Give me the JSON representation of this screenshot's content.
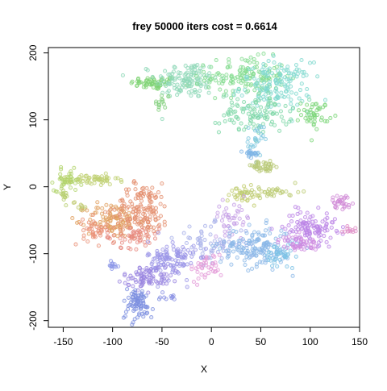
{
  "chart_data": {
    "type": "scatter",
    "title": "frey 50000 iters cost = 0.6614",
    "xlabel": "X",
    "ylabel": "Y",
    "xlim": [
      -165,
      150
    ],
    "ylim": [
      -210,
      208
    ],
    "x_ticks": [
      -150,
      -100,
      -50,
      0,
      50,
      100,
      150
    ],
    "y_ticks": [
      -200,
      -100,
      0,
      100,
      200
    ],
    "x_tick_labels": [
      "-150",
      "-100",
      "-50",
      "0",
      "50",
      "100",
      "150"
    ],
    "y_tick_labels": [
      "-200",
      "-100",
      "0",
      "100",
      "200"
    ],
    "grid": false,
    "legend": "none",
    "marker": "open circle",
    "color_scale": "hue, rainbow",
    "clusters": [
      {
        "cx": -58,
        "cy": 155,
        "sx": 12,
        "sy": 5,
        "n": 60,
        "color": "#7fd474"
      },
      {
        "cx": -25,
        "cy": 160,
        "sx": 16,
        "sy": 14,
        "n": 130,
        "color": "#8fd8b8"
      },
      {
        "cx": -50,
        "cy": 125,
        "sx": 4,
        "sy": 8,
        "n": 15,
        "color": "#86d080"
      },
      {
        "cx": 35,
        "cy": 165,
        "sx": 20,
        "sy": 14,
        "n": 140,
        "color": "#85dc90"
      },
      {
        "cx": 65,
        "cy": 150,
        "sx": 18,
        "sy": 18,
        "n": 150,
        "color": "#80d9cf"
      },
      {
        "cx": 45,
        "cy": 110,
        "sx": 18,
        "sy": 15,
        "n": 110,
        "color": "#7fd7a8"
      },
      {
        "cx": 105,
        "cy": 108,
        "sx": 7,
        "sy": 10,
        "n": 45,
        "color": "#7dd67a"
      },
      {
        "cx": 45,
        "cy": 70,
        "sx": 4,
        "sy": 12,
        "n": 25,
        "color": "#82c9e0"
      },
      {
        "cx": 40,
        "cy": 48,
        "sx": 4,
        "sy": 4,
        "n": 22,
        "color": "#7fb5e6"
      },
      {
        "cx": 52,
        "cy": 30,
        "sx": 10,
        "sy": 4,
        "n": 40,
        "color": "#b9c977"
      },
      {
        "cx": -145,
        "cy": 10,
        "sx": 7,
        "sy": 8,
        "n": 50,
        "color": "#b2d36b"
      },
      {
        "cx": -118,
        "cy": 10,
        "sx": 12,
        "sy": 4,
        "n": 50,
        "color": "#c0d072"
      },
      {
        "cx": -150,
        "cy": -12,
        "sx": 3,
        "sy": 6,
        "n": 12,
        "color": "#b7cf70"
      },
      {
        "cx": -132,
        "cy": -28,
        "sx": 4,
        "sy": 4,
        "n": 10,
        "color": "#bfc96f"
      },
      {
        "cx": 33,
        "cy": -12,
        "sx": 8,
        "sy": 8,
        "n": 30,
        "color": "#c2cd6f"
      },
      {
        "cx": 60,
        "cy": -8,
        "sx": 15,
        "sy": 4,
        "n": 40,
        "color": "#bccb74"
      },
      {
        "cx": -100,
        "cy": -50,
        "sx": 13,
        "sy": 13,
        "n": 100,
        "color": "#e1a060"
      },
      {
        "cx": -70,
        "cy": -35,
        "sx": 14,
        "sy": 20,
        "n": 160,
        "color": "#e48f70"
      },
      {
        "cx": -80,
        "cy": -75,
        "sx": 14,
        "sy": 8,
        "n": 50,
        "color": "#e78a80"
      },
      {
        "cx": -118,
        "cy": -65,
        "sx": 6,
        "sy": 10,
        "n": 40,
        "color": "#ea9077"
      },
      {
        "cx": 22,
        "cy": -45,
        "sx": 10,
        "sy": 12,
        "n": 40,
        "color": "#c5a0e6"
      },
      {
        "cx": 0,
        "cy": -85,
        "sx": 18,
        "sy": 14,
        "n": 70,
        "color": "#a9b2ea"
      },
      {
        "cx": 45,
        "cy": -90,
        "sx": 18,
        "sy": 15,
        "n": 160,
        "color": "#8cb9e8"
      },
      {
        "cx": 70,
        "cy": -105,
        "sx": 8,
        "sy": 10,
        "n": 40,
        "color": "#7ec3e6"
      },
      {
        "cx": -5,
        "cy": -120,
        "sx": 8,
        "sy": 10,
        "n": 40,
        "color": "#e49bd8"
      },
      {
        "cx": 100,
        "cy": -60,
        "sx": 13,
        "sy": 12,
        "n": 110,
        "color": "#bb84e6"
      },
      {
        "cx": 88,
        "cy": -85,
        "sx": 10,
        "sy": 6,
        "n": 50,
        "color": "#cf8ce0"
      },
      {
        "cx": 132,
        "cy": -22,
        "sx": 5,
        "sy": 5,
        "n": 30,
        "color": "#d08ad6"
      },
      {
        "cx": 138,
        "cy": -65,
        "sx": 5,
        "sy": 4,
        "n": 12,
        "color": "#e08fc8"
      },
      {
        "cx": -40,
        "cy": -110,
        "sx": 12,
        "sy": 15,
        "n": 120,
        "color": "#9c96e8"
      },
      {
        "cx": -65,
        "cy": -135,
        "sx": 12,
        "sy": 8,
        "n": 80,
        "color": "#9a86e0"
      },
      {
        "cx": -75,
        "cy": -175,
        "sx": 8,
        "sy": 12,
        "n": 80,
        "color": "#7d8fe0"
      },
      {
        "cx": -100,
        "cy": -118,
        "sx": 4,
        "sy": 3,
        "n": 12,
        "color": "#8c96e8"
      },
      {
        "cx": -45,
        "cy": -165,
        "sx": 5,
        "sy": 4,
        "n": 10,
        "color": "#8a92e4"
      }
    ]
  }
}
